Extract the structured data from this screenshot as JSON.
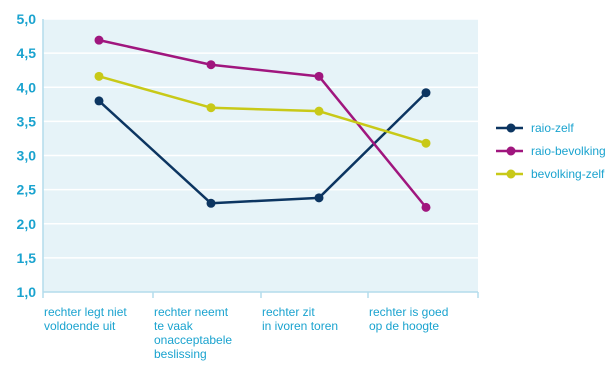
{
  "chart_data": {
    "type": "line",
    "title": "",
    "xlabel": "",
    "ylabel": "",
    "ylim": [
      1.0,
      5.0
    ],
    "yticks": [
      "1,0",
      "1,5",
      "2,0",
      "2,5",
      "3,0",
      "3,5",
      "4,0",
      "4,5",
      "5,0"
    ],
    "categories": [
      [
        "rechter legt niet",
        "voldoende uit"
      ],
      [
        "rechter neemt",
        "te vaak",
        "onacceptabele",
        "beslissing"
      ],
      [
        "rechter zit",
        "in ivoren toren"
      ],
      [
        "rechter is goed",
        "op de hoogte"
      ]
    ],
    "series": [
      {
        "name": "raio-zelf",
        "color": "#0c3561",
        "values": [
          3.8,
          2.3,
          2.38,
          3.92
        ]
      },
      {
        "name": "raio-bevolking",
        "color": "#a0167e",
        "values": [
          4.69,
          4.33,
          4.16,
          2.24
        ]
      },
      {
        "name": "bevolking-zelf",
        "color": "#c8c918",
        "values": [
          4.16,
          3.7,
          3.65,
          3.18
        ]
      }
    ],
    "grid": true,
    "legend_position": "right",
    "colors": {
      "plot_background": "#e6f3f8",
      "gridline": "#ffffff",
      "axis": "#b3dcec",
      "tick_text": "#1aa3cf"
    }
  }
}
